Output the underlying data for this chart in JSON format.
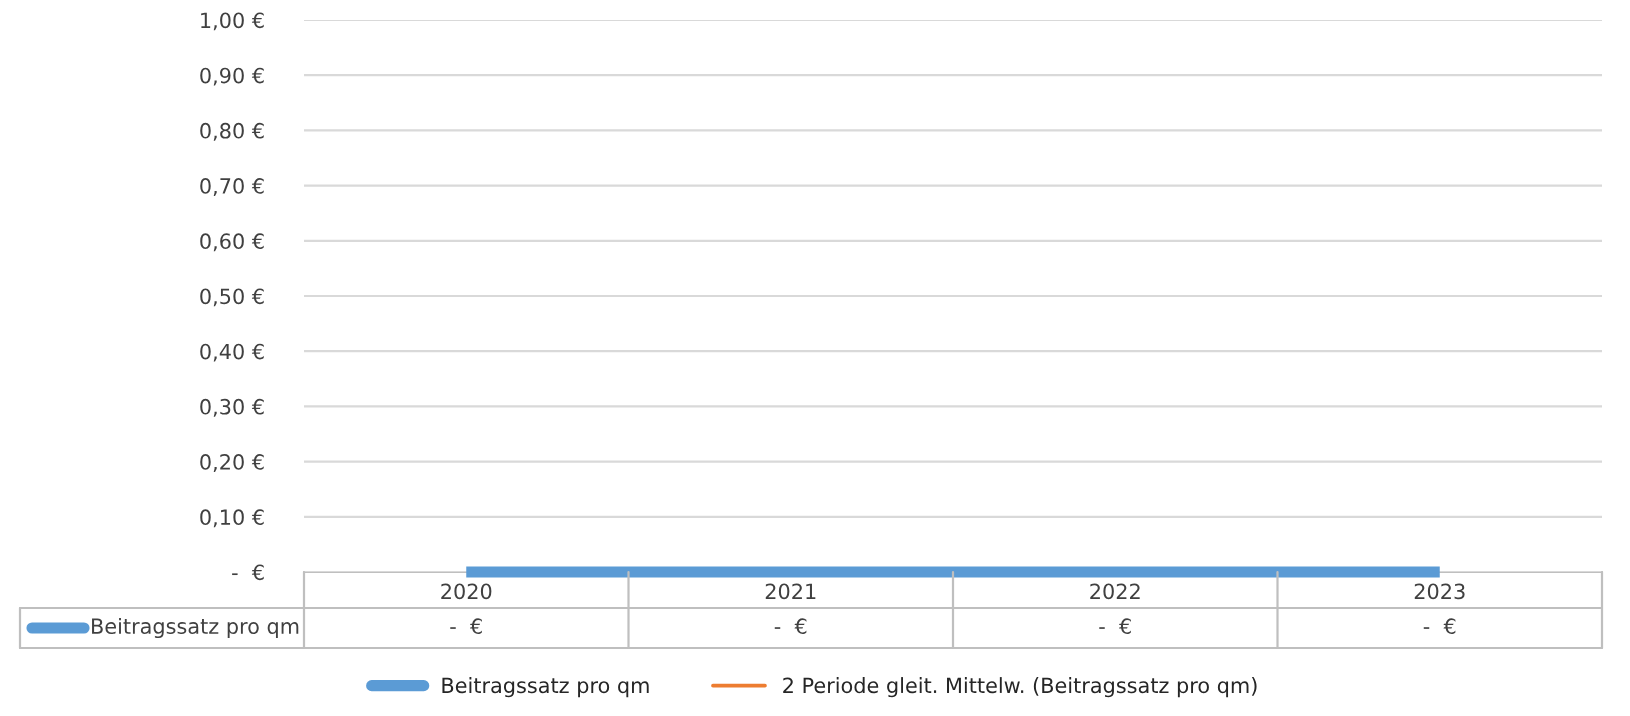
{
  "chart_data": {
    "type": "line",
    "categories": [
      "2020",
      "2021",
      "2022",
      "2023"
    ],
    "series": [
      {
        "name": "Beitragssatz pro qm",
        "color": "#5b9bd5",
        "values": [
          0,
          0,
          0,
          0
        ],
        "value_labels": [
          "-  €",
          "-  €",
          "-  €",
          "-  €"
        ]
      },
      {
        "name": "2 Periode gleit. Mittelw. (Beitragssatz pro qm)",
        "color": "#ed7d31",
        "values": [
          null,
          null,
          null,
          null
        ]
      }
    ],
    "ylim": [
      0,
      1
    ],
    "yticks": [
      {
        "value": 0,
        "label": "-  €"
      },
      {
        "value": 0.1,
        "label": "0,10 €"
      },
      {
        "value": 0.2,
        "label": "0,20 €"
      },
      {
        "value": 0.3,
        "label": "0,30 €"
      },
      {
        "value": 0.4,
        "label": "0,40 €"
      },
      {
        "value": 0.5,
        "label": "0,50 €"
      },
      {
        "value": 0.6,
        "label": "0,60 €"
      },
      {
        "value": 0.7,
        "label": "0,70 €"
      },
      {
        "value": 0.8,
        "label": "0,80 €"
      },
      {
        "value": 0.9,
        "label": "0,90 €"
      },
      {
        "value": 1.0,
        "label": "1,00 €"
      }
    ],
    "grid": "y",
    "legend": "bottom"
  }
}
